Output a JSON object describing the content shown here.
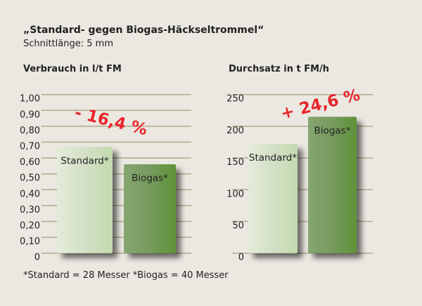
{
  "title": "„Standard- gegen Biogas-Häckseltrommel“",
  "subtitle": "Schnittlänge: 5 mm",
  "footnote": "*Standard = 28 Messer *Biogas = 40 Messer",
  "colors": {
    "background": "#ebe8e1",
    "grid": "#b5a98a",
    "standard": "#cfe0c0",
    "biogas": "#6a9a4a",
    "annotation": "#e8262b"
  },
  "chart_data": [
    {
      "type": "bar",
      "title": "Verbrauch in l/t FM",
      "categories": [
        "Standard*",
        "Biogas*"
      ],
      "values": [
        0.67,
        0.56
      ],
      "ylim": [
        0,
        1.0
      ],
      "yticks": [
        "0",
        "0,10",
        "0,20",
        "0,30",
        "0,40",
        "0,50",
        "0,60",
        "0,70",
        "0,80",
        "0,90",
        "1,00"
      ],
      "grid": true,
      "annotation": "- 16,4 %"
    },
    {
      "type": "bar",
      "title": "Durchsatz in t FM/h",
      "categories": [
        "Standard*",
        "Biogas*"
      ],
      "values": [
        172,
        215
      ],
      "ylim": [
        0,
        250
      ],
      "yticks": [
        "0",
        "50",
        "100",
        "150",
        "200",
        "250"
      ],
      "grid": true,
      "annotation": "+ 24,6 %"
    }
  ]
}
